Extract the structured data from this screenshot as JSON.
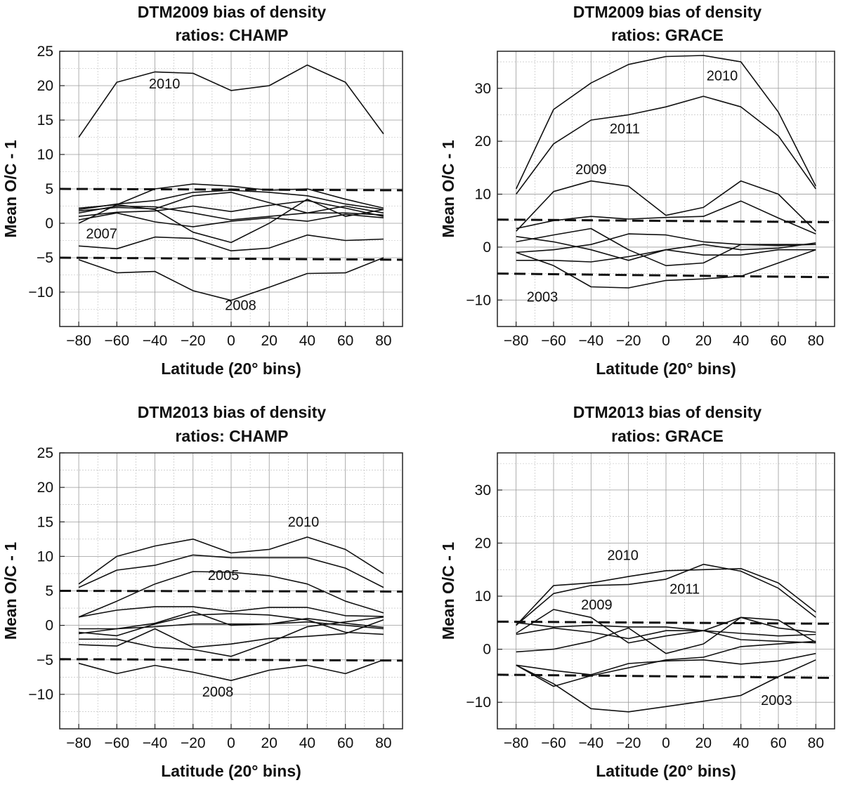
{
  "chart_data": [
    {
      "type": "line",
      "title": [
        "DTM2009 bias of density",
        "ratios: CHAMP"
      ],
      "xlabel": "Latitude (20° bins)",
      "ylabel": "Mean O/C - 1",
      "xlim": [
        -90,
        90
      ],
      "ylim": [
        -15,
        25
      ],
      "xticks": [
        -80,
        -60,
        -40,
        -20,
        0,
        20,
        40,
        60,
        80
      ],
      "xtick_labels": [
        "−80",
        "−60",
        "−40",
        "−20",
        "0",
        "20",
        "40",
        "60",
        "80"
      ],
      "yticks": [
        -10,
        -5,
        0,
        5,
        10,
        15,
        20,
        25
      ],
      "ytick_labels": [
        "−10",
        "−5",
        "0",
        "5",
        "10",
        "15",
        "20",
        "25"
      ],
      "ygrid_step": 2.5,
      "x": [
        -80,
        -60,
        -40,
        -20,
        0,
        20,
        40,
        60,
        80
      ],
      "bounds": [
        [
          5,
          4.8
        ],
        [
          -5,
          -5.3
        ]
      ],
      "series": [
        {
          "name": "2010",
          "values": [
            12.5,
            20.5,
            22,
            21.8,
            19.3,
            20,
            23,
            20.5,
            13
          ]
        },
        {
          "name": "s2",
          "values": [
            2.2,
            2.7,
            5,
            5.7,
            5.4,
            4.8,
            5,
            3.5,
            2.2
          ]
        },
        {
          "name": "s3",
          "values": [
            2,
            2.8,
            3.3,
            4.5,
            4.8,
            4.5,
            4,
            2.8,
            2
          ]
        },
        {
          "name": "s4",
          "values": [
            1.5,
            2.5,
            2.4,
            1.5,
            0.5,
            1,
            1.5,
            2.5,
            1.5
          ]
        },
        {
          "name": "s5",
          "values": [
            1,
            1.6,
            1.8,
            2.5,
            1.7,
            2.6,
            3.3,
            2.2,
            1
          ]
        },
        {
          "name": "s6",
          "values": [
            0.5,
            1.5,
            0.2,
            -0.5,
            0.3,
            0.8,
            0.3,
            1.3,
            0.8
          ]
        },
        {
          "name": "s7",
          "values": [
            0,
            2.7,
            2,
            -1.3,
            -2.8,
            0,
            3.5,
            1,
            2
          ]
        },
        {
          "name": "s8",
          "values": [
            1.8,
            2.3,
            2.1,
            4,
            4.5,
            3,
            1.5,
            1.5,
            1.2
          ]
        },
        {
          "name": "2007",
          "values": [
            -3.3,
            -3.7,
            -2,
            -2.2,
            -4,
            -3.6,
            -1.7,
            -2.5,
            -2.3
          ]
        },
        {
          "name": "2008",
          "values": [
            -5.3,
            -7.2,
            -7,
            -9.8,
            -11.2,
            -9.3,
            -7.3,
            -7.2,
            -5
          ]
        }
      ],
      "annotations": [
        {
          "text": "2010",
          "x": -35,
          "y": 19.6
        },
        {
          "text": "2007",
          "x": -68,
          "y": -2.2
        },
        {
          "text": "2008",
          "x": 5,
          "y": -12.6
        }
      ]
    },
    {
      "type": "line",
      "title": [
        "DTM2009 bias of density",
        "ratios: GRACE"
      ],
      "xlabel": "Latitude (20° bins)",
      "ylabel": "Mean O/C - 1",
      "xlim": [
        -90,
        90
      ],
      "ylim": [
        -15,
        37
      ],
      "xticks": [
        -80,
        -60,
        -40,
        -20,
        0,
        20,
        40,
        60,
        80
      ],
      "xtick_labels": [
        "−80",
        "−60",
        "−40",
        "−20",
        "0",
        "20",
        "40",
        "60",
        "80"
      ],
      "yticks": [
        -10,
        0,
        10,
        20,
        30
      ],
      "ytick_labels": [
        "−10",
        "0",
        "10",
        "20",
        "30"
      ],
      "ygrid_step": 5,
      "x": [
        -80,
        -60,
        -40,
        -20,
        0,
        20,
        40,
        60,
        80
      ],
      "bounds": [
        [
          5.2,
          4.7
        ],
        [
          -5,
          -5.7
        ]
      ],
      "series": [
        {
          "name": "2010",
          "values": [
            11,
            26,
            31,
            34.5,
            36,
            36.2,
            35,
            25.5,
            11.5
          ]
        },
        {
          "name": "2011",
          "values": [
            10,
            19.5,
            24,
            25,
            26.5,
            28.5,
            26.5,
            21,
            11
          ]
        },
        {
          "name": "2009",
          "values": [
            3,
            10.5,
            12.5,
            11.5,
            6,
            7.5,
            12.5,
            10,
            3
          ]
        },
        {
          "name": "s4",
          "values": [
            3.5,
            5,
            5.8,
            5.3,
            5.6,
            5.8,
            8.7,
            5.5,
            2.5
          ]
        },
        {
          "name": "s5",
          "values": [
            1,
            2.3,
            3.5,
            -0.5,
            -3.5,
            -3,
            0.5,
            0.5,
            0.5
          ]
        },
        {
          "name": "s6",
          "values": [
            -1,
            -0.5,
            0.5,
            2.5,
            2.3,
            1,
            0.5,
            0.3,
            0.5
          ]
        },
        {
          "name": "s7",
          "values": [
            2,
            1,
            -0.5,
            -2.5,
            -0.5,
            -1.5,
            -1.5,
            -0.5,
            -0.5
          ]
        },
        {
          "name": "s8",
          "values": [
            -2.5,
            -2.5,
            -2.8,
            -1.8,
            -0.5,
            0.5,
            -0.5,
            -0.2,
            0.8
          ]
        },
        {
          "name": "2003",
          "values": [
            -1,
            -3.5,
            -7.5,
            -7.7,
            -6.3,
            -6,
            -5.5,
            -3,
            -0.5
          ]
        }
      ],
      "annotations": [
        {
          "text": "2010",
          "x": 30,
          "y": 31.5
        },
        {
          "text": "2011",
          "x": -22,
          "y": 21.5
        },
        {
          "text": "2009",
          "x": -40,
          "y": 13.8
        },
        {
          "text": "2003",
          "x": -66,
          "y": -10.3
        }
      ]
    },
    {
      "type": "line",
      "title": [
        "DTM2013 bias of density",
        "ratios: CHAMP"
      ],
      "xlabel": "Latitude (20° bins)",
      "ylabel": "Mean O/C - 1",
      "xlim": [
        -90,
        90
      ],
      "ylim": [
        -15,
        25
      ],
      "xticks": [
        -80,
        -60,
        -40,
        -20,
        0,
        20,
        40,
        60,
        80
      ],
      "xtick_labels": [
        "−80",
        "−60",
        "−40",
        "−20",
        "0",
        "20",
        "40",
        "60",
        "80"
      ],
      "yticks": [
        -10,
        -5,
        0,
        5,
        10,
        15,
        20,
        25
      ],
      "ytick_labels": [
        "−10",
        "−5",
        "0",
        "5",
        "10",
        "15",
        "20",
        "25"
      ],
      "ygrid_step": 2.5,
      "x": [
        -80,
        -60,
        -40,
        -20,
        0,
        20,
        40,
        60,
        80
      ],
      "bounds": [
        [
          5,
          4.9
        ],
        [
          -4.9,
          -5.1
        ]
      ],
      "series": [
        {
          "name": "2010",
          "values": [
            6,
            10,
            11.5,
            12.5,
            10.5,
            11,
            12.8,
            11,
            7.5
          ]
        },
        {
          "name": "s2",
          "values": [
            5.5,
            8,
            8.7,
            10.2,
            9.8,
            9.8,
            9.8,
            8.3,
            5.5
          ]
        },
        {
          "name": "2005",
          "values": [
            1.2,
            3.5,
            6,
            7.8,
            7.7,
            7.2,
            6,
            3.5,
            1.8
          ]
        },
        {
          "name": "s4",
          "values": [
            1.2,
            2.2,
            2.7,
            2.7,
            2,
            2.6,
            2.6,
            1.4,
            1.3
          ]
        },
        {
          "name": "s5",
          "values": [
            -0.5,
            -0.5,
            -0.2,
            0.2,
            0.2,
            0.2,
            0.5,
            0,
            -0.5
          ]
        },
        {
          "name": "s6",
          "values": [
            -1,
            -1.5,
            0.2,
            1.5,
            1.7,
            1.5,
            0.8,
            -1,
            -1.3
          ]
        },
        {
          "name": "s7",
          "values": [
            -1.2,
            -0.5,
            0.3,
            2,
            0,
            0.2,
            1,
            0.3,
            -0.3
          ]
        },
        {
          "name": "s8",
          "values": [
            -2.8,
            -3,
            -0.5,
            -3.2,
            -2.7,
            -1.9,
            -1.6,
            -1.2,
            0.8
          ]
        },
        {
          "name": "s9",
          "values": [
            -2,
            -2,
            -3.2,
            -3.5,
            -4.5,
            -2.5,
            -0.2,
            0.5,
            1.2
          ]
        },
        {
          "name": "2008",
          "values": [
            -5.5,
            -7,
            -5.8,
            -6.8,
            -8,
            -6.5,
            -5.8,
            -7,
            -5
          ]
        }
      ],
      "annotations": [
        {
          "text": "2010",
          "x": 38,
          "y": 14.3
        },
        {
          "text": "2005",
          "x": -4,
          "y": 6.6
        },
        {
          "text": "2008",
          "x": -7,
          "y": -10.3
        }
      ]
    },
    {
      "type": "line",
      "title": [
        "DTM2013 bias of density",
        "ratios: GRACE"
      ],
      "xlabel": "Latitude (20° bins)",
      "ylabel": "Mean O/C - 1",
      "xlim": [
        -90,
        90
      ],
      "ylim": [
        -15,
        37
      ],
      "xticks": [
        -80,
        -60,
        -40,
        -20,
        0,
        20,
        40,
        60,
        80
      ],
      "xtick_labels": [
        "−80",
        "−60",
        "−40",
        "−20",
        "0",
        "20",
        "40",
        "60",
        "80"
      ],
      "yticks": [
        -10,
        0,
        10,
        20,
        30
      ],
      "ytick_labels": [
        "−10",
        "0",
        "10",
        "20",
        "30"
      ],
      "ygrid_step": 5,
      "x": [
        -80,
        -60,
        -40,
        -20,
        0,
        20,
        40,
        60,
        80
      ],
      "bounds": [
        [
          5.2,
          4.8
        ],
        [
          -4.8,
          -5.4
        ]
      ],
      "series": [
        {
          "name": "2010",
          "values": [
            4.5,
            12,
            12.5,
            13.7,
            14.8,
            15,
            15.2,
            12.5,
            7
          ]
        },
        {
          "name": "2011",
          "values": [
            4.5,
            10.5,
            12,
            12.2,
            13.2,
            16,
            14.7,
            11.5,
            6
          ]
        },
        {
          "name": "2009",
          "values": [
            3,
            7.5,
            6,
            1.2,
            2.5,
            3.5,
            6,
            5.5,
            1.3
          ]
        },
        {
          "name": "s4",
          "values": [
            5,
            4.2,
            4.5,
            4.2,
            4.2,
            3.5,
            3,
            2.5,
            2.8
          ]
        },
        {
          "name": "s5",
          "values": [
            2.8,
            4,
            3.2,
            2,
            3.5,
            3.5,
            1.8,
            1.5,
            1.2
          ]
        },
        {
          "name": "s6",
          "values": [
            -0.5,
            0,
            1.5,
            4,
            -0.8,
            1,
            6,
            4,
            3.2
          ]
        },
        {
          "name": "s7",
          "values": [
            -3,
            -7,
            -5,
            -3.5,
            -2,
            -1.5,
            0.5,
            1,
            1.5
          ]
        },
        {
          "name": "s8",
          "values": [
            -3,
            -4,
            -4.8,
            -2.7,
            -2.2,
            -2,
            -2.8,
            -2.2,
            -0.8
          ]
        },
        {
          "name": "2003",
          "values": [
            -3,
            -6.5,
            -11.2,
            -11.8,
            -10.8,
            -9.8,
            -8.7,
            -5.2,
            -2
          ]
        }
      ],
      "annotations": [
        {
          "text": "2010",
          "x": -23,
          "y": 16.8
        },
        {
          "text": "2011",
          "x": 10,
          "y": 10.5
        },
        {
          "text": "2009",
          "x": -37,
          "y": 7.5
        },
        {
          "text": "2003",
          "x": 59,
          "y": -10.5
        }
      ]
    }
  ]
}
